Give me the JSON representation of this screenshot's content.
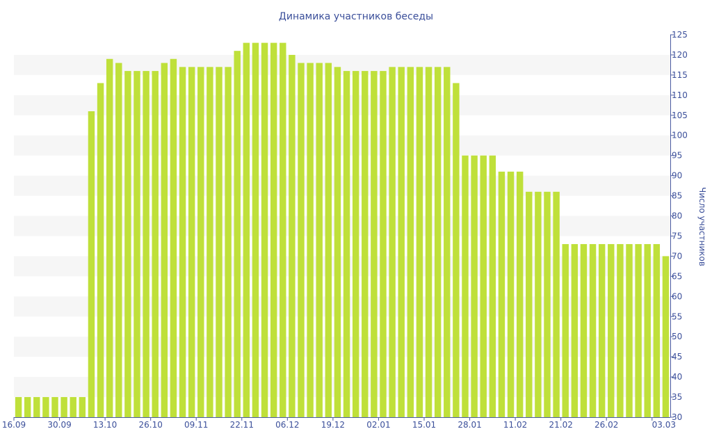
{
  "chart_data": {
    "type": "bar",
    "title": "Динамика участников беседы",
    "xlabel": "",
    "ylabel": "Число участников",
    "ylim": [
      30,
      125
    ],
    "y_ticks": [
      30,
      35,
      40,
      45,
      50,
      55,
      60,
      65,
      70,
      75,
      80,
      85,
      90,
      95,
      100,
      105,
      110,
      115,
      120,
      125
    ],
    "y_axis_side": "right",
    "grid": "alternating horizontal bands",
    "x_tick_labels": [
      {
        "index": 0,
        "label": "16.09"
      },
      {
        "index": 5,
        "label": "30.09"
      },
      {
        "index": 10,
        "label": "13.10"
      },
      {
        "index": 15,
        "label": "26.10"
      },
      {
        "index": 20,
        "label": "09.11"
      },
      {
        "index": 25,
        "label": "22.11"
      },
      {
        "index": 30,
        "label": "06.12"
      },
      {
        "index": 35,
        "label": "19.12"
      },
      {
        "index": 40,
        "label": "02.01"
      },
      {
        "index": 45,
        "label": "15.01"
      },
      {
        "index": 50,
        "label": "28.01"
      },
      {
        "index": 55,
        "label": "11.02"
      },
      {
        "index": 60,
        "label": "21.02"
      },
      {
        "index": 65,
        "label": "26.02"
      },
      {
        "index": 70,
        "label": "03.03"
      }
    ],
    "values": [
      35,
      35,
      35,
      35,
      35,
      35,
      35,
      35,
      106,
      113,
      119,
      118,
      116,
      116,
      116,
      116,
      118,
      119,
      117,
      117,
      117,
      117,
      117,
      117,
      121,
      123,
      123,
      123,
      123,
      123,
      120,
      118,
      118,
      118,
      118,
      117,
      116,
      116,
      116,
      116,
      116,
      117,
      117,
      117,
      117,
      117,
      117,
      117,
      113,
      95,
      95,
      95,
      95,
      91,
      91,
      91,
      86,
      86,
      86,
      86,
      73,
      73,
      73,
      73,
      73,
      73,
      73,
      73,
      73,
      73,
      73,
      70
    ],
    "colors": {
      "bar": "#bfe03a",
      "band": "#f6f6f6",
      "text": "#3b4f9a",
      "axis": "#4a5aa0"
    }
  }
}
